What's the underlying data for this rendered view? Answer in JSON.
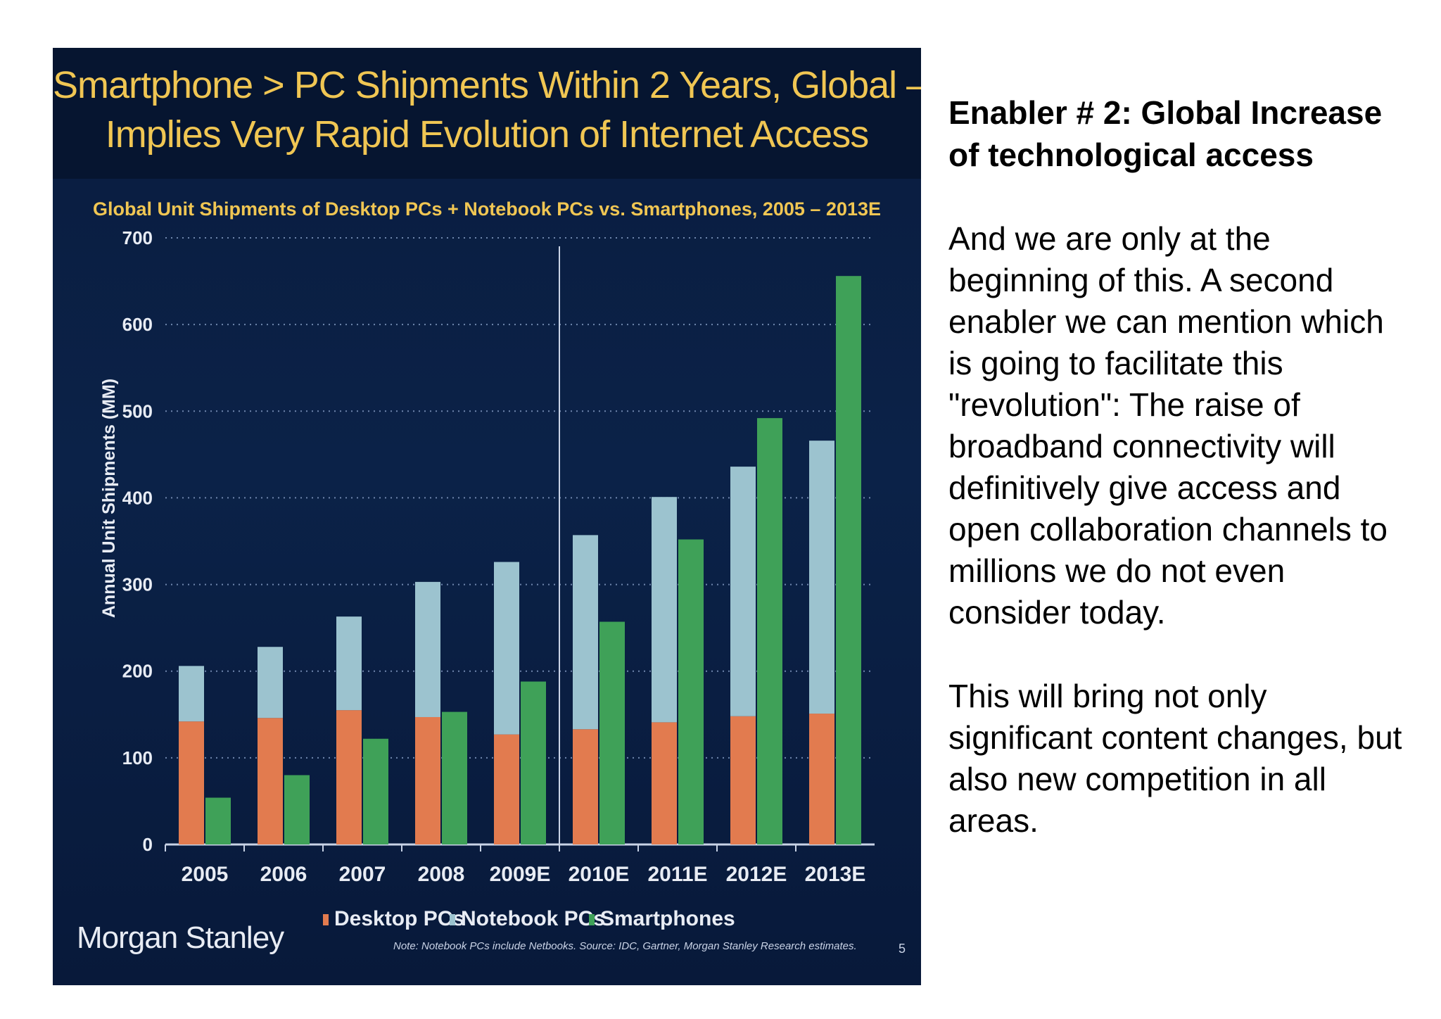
{
  "chart_slide": {
    "title_line_1": "Smartphone > PC Shipments Within 2 Years, Global –",
    "title_line_2": "Implies Very Rapid Evolution of Internet Access",
    "logo": "Morgan Stanley",
    "note": "Note: Notebook PCs include Netbooks. Source: IDC, Gartner, Morgan Stanley Research estimates.",
    "page_number": "5",
    "colors": {
      "background": "#0b2248",
      "title": "#f0c653",
      "subtitle": "#f0c653",
      "desktop": "#e27b4f",
      "notebook": "#9cc3cf",
      "smartphone": "#3fa158"
    }
  },
  "chart_data": {
    "type": "bar",
    "title": "Global Unit Shipments of Desktop PCs + Notebook PCs vs. Smartphones, 2005 – 2013E",
    "ylabel": "Annual Unit Shipments (MM)",
    "xlabel": "",
    "ylim": [
      0,
      700
    ],
    "yticks": [
      "0",
      "100",
      "200",
      "300",
      "400",
      "500",
      "600",
      "700"
    ],
    "categories": [
      "2005",
      "2006",
      "2007",
      "2008",
      "2009E",
      "2010E",
      "2011E",
      "2012E",
      "2013E"
    ],
    "grid": true,
    "legend_position": "bottom",
    "stacked_pc": true,
    "series": [
      {
        "name": "Desktop PCs",
        "stack": "pc",
        "values": [
          142,
          146,
          155,
          147,
          127,
          133,
          141,
          148,
          151
        ]
      },
      {
        "name": "Notebook PCs",
        "stack": "pc",
        "values": [
          64,
          82,
          108,
          156,
          199,
          224,
          260,
          288,
          315
        ]
      },
      {
        "name": "Smartphones",
        "stack": "phone",
        "values": [
          54,
          80,
          122,
          153,
          188,
          257,
          352,
          492,
          656
        ]
      }
    ]
  },
  "side_text": {
    "heading": "Enabler # 2: Global Increase of technological access",
    "paragraph_1": "And we are only at the beginning of this. A second enabler we can mention which is going to facilitate this \"revolution\": The raise of broadband connectivity will definitively give access and open collaboration channels to millions we do not even consider today.",
    "paragraph_2": "This will bring not only significant content changes, but also new competition in all areas."
  }
}
